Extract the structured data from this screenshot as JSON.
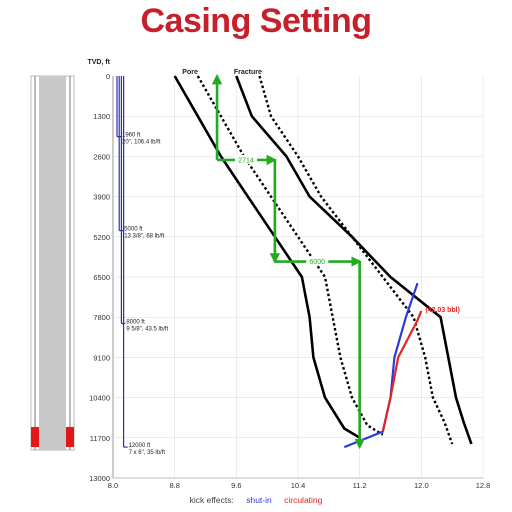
{
  "title": "Casing Setting",
  "colors": {
    "title": "#c8202a",
    "casing": "#2a2fb8",
    "arrow": "#22aa22",
    "shut_in": "#2a3ad8",
    "circulating": "#e02626",
    "curve": "#000000",
    "grid": "#d8d8d8",
    "wellbore_fill": "#c8c8c8",
    "kick_zone": "#e01818"
  },
  "chart_data": {
    "type": "line",
    "ylabel": "TVD, ft",
    "ylim": [
      0,
      13000
    ],
    "y_reversed": true,
    "yticks": [
      0,
      1300,
      2600,
      3900,
      5200,
      6500,
      7800,
      9100,
      10400,
      11700,
      13000
    ],
    "xlim": [
      8.0,
      12.8
    ],
    "xticks": [
      "8.0",
      "8.8",
      "9.6",
      "10.4",
      "11.2",
      "12.0",
      "12.8"
    ],
    "series": [
      {
        "name": "Pore",
        "style": "solid",
        "points": [
          [
            8.8,
            0
          ],
          [
            9.1,
            1300
          ],
          [
            9.4,
            2600
          ],
          [
            9.75,
            3900
          ],
          [
            10.1,
            5200
          ],
          [
            10.45,
            6500
          ],
          [
            10.55,
            7800
          ],
          [
            10.6,
            9100
          ],
          [
            10.75,
            10400
          ],
          [
            11.0,
            11400
          ],
          [
            11.2,
            11700
          ]
        ]
      },
      {
        "name": "",
        "style": "dotted",
        "points": [
          [
            9.1,
            0
          ],
          [
            9.4,
            1300
          ],
          [
            9.7,
            2600
          ],
          [
            10.05,
            3900
          ],
          [
            10.4,
            5200
          ],
          [
            10.75,
            6500
          ],
          [
            10.85,
            7800
          ],
          [
            10.95,
            9100
          ],
          [
            11.1,
            10400
          ],
          [
            11.3,
            11300
          ],
          [
            11.5,
            11600
          ]
        ]
      },
      {
        "name": "",
        "style": "dotted",
        "points": [
          [
            9.9,
            0
          ],
          [
            10.05,
            1300
          ],
          [
            10.4,
            2600
          ],
          [
            10.7,
            3900
          ],
          [
            11.1,
            5200
          ],
          [
            11.5,
            6500
          ],
          [
            11.9,
            7800
          ],
          [
            12.05,
            9100
          ],
          [
            12.15,
            10400
          ],
          [
            12.3,
            11200
          ],
          [
            12.4,
            11900
          ]
        ]
      },
      {
        "name": "Fracture",
        "style": "solid",
        "points": [
          [
            9.6,
            0
          ],
          [
            9.8,
            1300
          ],
          [
            10.25,
            2600
          ],
          [
            10.55,
            3900
          ],
          [
            11.1,
            5200
          ],
          [
            11.6,
            6500
          ],
          [
            12.25,
            7800
          ],
          [
            12.35,
            9100
          ],
          [
            12.45,
            10400
          ],
          [
            12.55,
            11200
          ],
          [
            12.65,
            11900
          ]
        ]
      }
    ],
    "design_steps": [
      {
        "from": [
          9.35,
          0
        ],
        "to": [
          9.35,
          2714
        ]
      },
      {
        "from": [
          9.35,
          2714
        ],
        "to": [
          10.1,
          2714
        ],
        "label": "2714"
      },
      {
        "from": [
          10.1,
          2714
        ],
        "to": [
          10.1,
          6000
        ]
      },
      {
        "from": [
          10.1,
          6000
        ],
        "to": [
          11.2,
          6000
        ],
        "label": "6000"
      },
      {
        "from": [
          11.2,
          6000
        ],
        "to": [
          11.2,
          12000
        ]
      }
    ],
    "kick_effects": [
      {
        "name": "shut-in",
        "points": [
          [
            11.0,
            12000
          ],
          [
            11.2,
            11800
          ],
          [
            11.5,
            11500
          ],
          [
            11.6,
            10400
          ],
          [
            11.65,
            9100
          ],
          [
            11.8,
            7800
          ],
          [
            11.95,
            6700
          ]
        ]
      },
      {
        "name": "circulating",
        "points": [
          [
            11.5,
            11500
          ],
          [
            11.6,
            10400
          ],
          [
            11.7,
            9100
          ],
          [
            11.95,
            7900
          ],
          [
            12.0,
            7600
          ]
        ],
        "label": "(42.03 bbl)"
      }
    ],
    "curve_labels": [
      "Pore",
      "Fracture"
    ],
    "casings": [
      {
        "depth": 1960,
        "depth_label": "1960 ft",
        "spec": "20\", 106.4 lb/ft"
      },
      {
        "depth": 5000,
        "depth_label": "5000 ft",
        "spec": "13 3/8\", 68 lb/ft"
      },
      {
        "depth": 8000,
        "depth_label": "8000 ft",
        "spec": "9 5/8\", 43.5 lb/ft"
      },
      {
        "depth": 12000,
        "depth_label": "12000 ft",
        "spec": "7 x 6\", 35 lb/ft"
      }
    ]
  },
  "legend": {
    "prefix": "kick effects:",
    "shut_in": "shut-in",
    "circulating": "circulating"
  }
}
